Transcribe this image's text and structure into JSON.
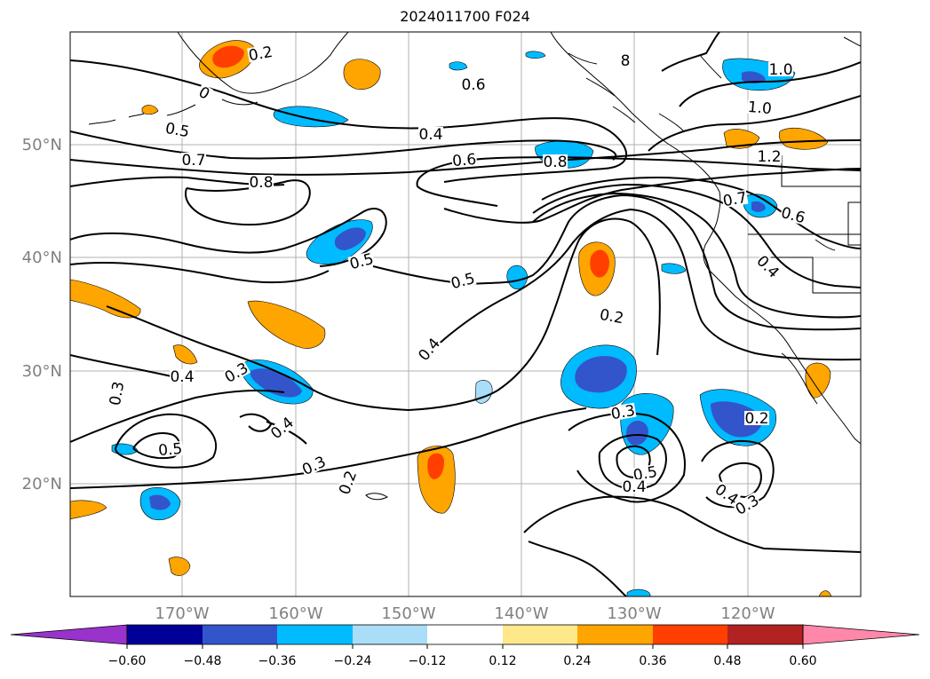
{
  "title": "2024011700 F024",
  "lon_labels": [
    "170°W",
    "160°W",
    "150°W",
    "140°W",
    "130°W",
    "120°W"
  ],
  "lat_labels": [
    "50°N",
    "40°N",
    "30°N",
    "20°N"
  ],
  "colorbar": {
    "ticks": [
      "−0.60",
      "−0.48",
      "−0.36",
      "−0.24",
      "−0.12",
      "0.12",
      "0.24",
      "0.36",
      "0.48",
      "0.60"
    ],
    "colors": [
      "#9933cc",
      "#000099",
      "#3355cc",
      "#00bbff",
      "#aaddf7",
      "#ffffff",
      "#ffe88a",
      "#ffa500",
      "#ff3f00",
      "#b22222",
      "#ff88aa"
    ]
  },
  "fill_colors": {
    "neg_light": "#aaddf7",
    "neg_mid": "#00bbff",
    "neg_dark": "#3355cc",
    "pos_light": "#ffe88a",
    "pos_mid": "#ffa500",
    "pos_dark": "#ff3f00"
  },
  "contour_labels": [
    {
      "t": "0.2"
    },
    {
      "t": "0.6"
    },
    {
      "t": "8"
    },
    {
      "t": "1.0"
    },
    {
      "t": "1.0"
    },
    {
      "t": "0.5"
    },
    {
      "t": "0.4"
    },
    {
      "t": "0.6"
    },
    {
      "t": "0.8"
    },
    {
      "t": "1.2"
    },
    {
      "t": "0.7"
    },
    {
      "t": "0.8"
    },
    {
      "t": "0.7"
    },
    {
      "t": "0.6"
    },
    {
      "t": "0.5"
    },
    {
      "t": "0.5"
    },
    {
      "t": "0.4"
    },
    {
      "t": "0.2"
    },
    {
      "t": "0.4"
    },
    {
      "t": "0.3"
    },
    {
      "t": "0.3"
    },
    {
      "t": "0.4"
    },
    {
      "t": "0.5"
    },
    {
      "t": "0.3"
    },
    {
      "t": "0.2"
    },
    {
      "t": "0.3"
    },
    {
      "t": "0.5"
    },
    {
      "t": "0.4"
    },
    {
      "t": "0.2"
    },
    {
      "t": "0.4"
    },
    {
      "t": "0.3"
    },
    {
      "t": "0.4"
    },
    {
      "t": "0"
    }
  ]
}
